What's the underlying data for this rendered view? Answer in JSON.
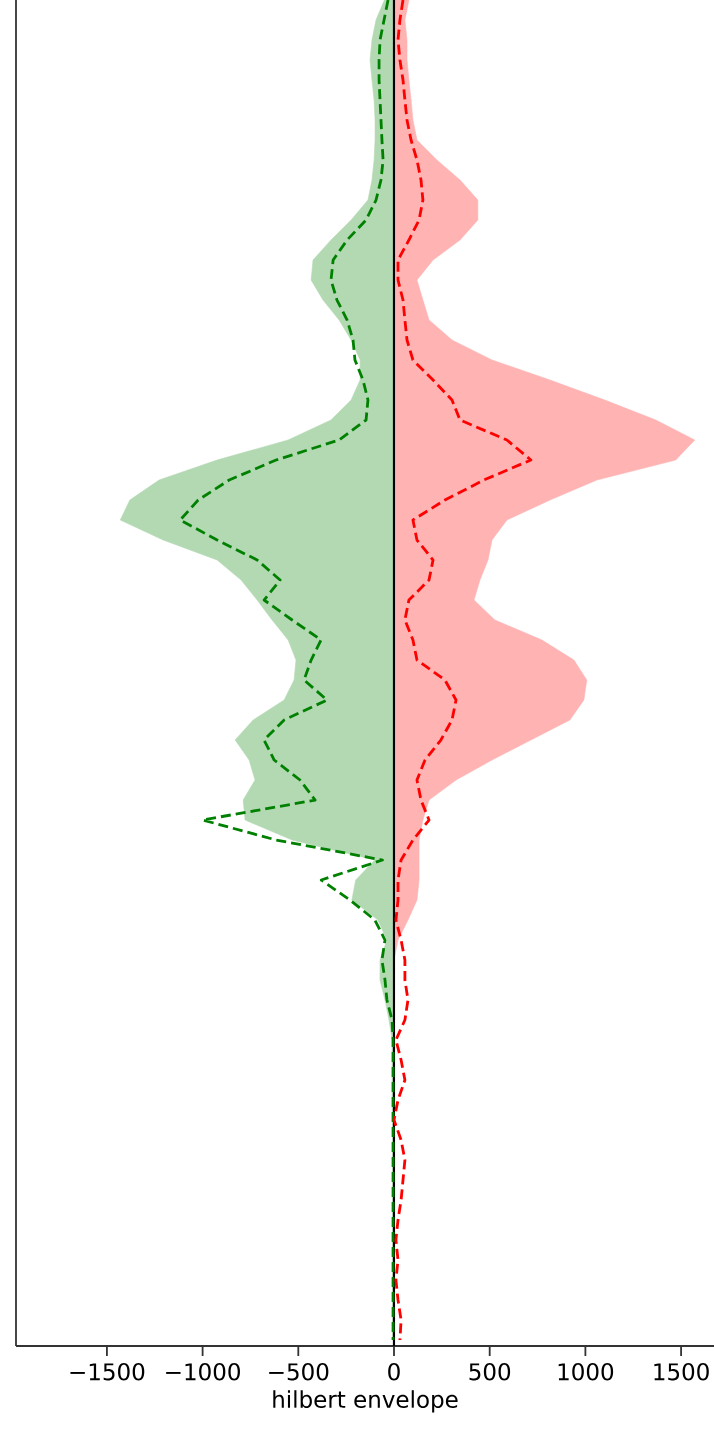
{
  "chart_data": {
    "type": "area",
    "orientation": "horizontal",
    "xlabel": "hilbert envelope",
    "categories": [
      null,
      null,
      null,
      null,
      null,
      null,
      null,
      null,
      null,
      null,
      null,
      null,
      null,
      null,
      null,
      null,
      null,
      null,
      null,
      null,
      null,
      null,
      null,
      null,
      null,
      null,
      null,
      null,
      null,
      null,
      null,
      null,
      null,
      null,
      null,
      null,
      null,
      null,
      null,
      null,
      null,
      null,
      null,
      null,
      null,
      null,
      null,
      null,
      null,
      null,
      null,
      null,
      null,
      null,
      null,
      null,
      null,
      null,
      null,
      null,
      null,
      null,
      null,
      null,
      null,
      null,
      null,
      null
    ],
    "xlim": [
      -1975,
      1672
    ],
    "xticks": [
      {
        "value": -1500,
        "label": "−1500"
      },
      {
        "value": -1000,
        "label": "−1000"
      },
      {
        "value": -500,
        "label": "−500"
      },
      0,
      500,
      1000,
      1500
    ],
    "tick_labels": "x",
    "ref_lines": [
      {
        "axis": "x",
        "value": 0,
        "color": "#000000"
      }
    ],
    "series": [
      {
        "color": "#b3d9b3",
        "values": [
          -50,
          -94,
          -115,
          -125,
          -115,
          -104,
          -99,
          -99,
          -104,
          -115,
          -136,
          -224,
          -329,
          -423,
          -433,
          -371,
          -287,
          -224,
          -177,
          -177,
          -224,
          -329,
          -553,
          -924,
          -1227,
          -1380,
          -1430,
          -1206,
          -924,
          -799,
          -715,
          -637,
          -553,
          -512,
          -522,
          -574,
          -736,
          -830,
          -757,
          -726,
          -788,
          -778,
          -532,
          -100,
          -200,
          -220,
          -84,
          -37,
          -73,
          -73,
          -47,
          -26,
          -10,
          -10,
          -10,
          -10,
          -8,
          -8,
          -8,
          -8,
          -8,
          -8,
          -8,
          -8,
          -8,
          -8,
          -8,
          -8
        ]
      },
      {
        "color": "#ffb3b3",
        "values": [
          78,
          57,
          68,
          68,
          78,
          89,
          99,
          120,
          224,
          345,
          438,
          438,
          345,
          204,
          120,
          151,
          183,
          303,
          512,
          815,
          1101,
          1368,
          1571,
          1472,
          1060,
          815,
          590,
          512,
          491,
          449,
          418,
          527,
          773,
          940,
          1007,
          992,
          919,
          715,
          512,
          324,
          183,
          151,
          131,
          131,
          131,
          120,
          73,
          21,
          0,
          0,
          0,
          0,
          0,
          0,
          0,
          0,
          0,
          0,
          0,
          0,
          0,
          0,
          0,
          0,
          0,
          0,
          0,
          0
        ]
      },
      {
        "type": "line",
        "line_style": "dashed",
        "color": "#008000",
        "values": [
          -31,
          -52,
          -73,
          -78,
          -78,
          -73,
          -68,
          -63,
          -57,
          -68,
          -94,
          -146,
          -245,
          -318,
          -329,
          -298,
          -245,
          -214,
          -204,
          -162,
          -136,
          -146,
          -287,
          -616,
          -861,
          -1023,
          -1117,
          -924,
          -715,
          -595,
          -679,
          -532,
          -381,
          -433,
          -470,
          -350,
          -574,
          -679,
          -626,
          -491,
          -412,
          -1000,
          -616,
          -60,
          -380,
          -230,
          -100,
          -47,
          -63,
          -47,
          -37,
          -10,
          -5,
          -5,
          -5,
          -5,
          -5,
          -5,
          -5,
          -5,
          -5,
          -5,
          -5,
          -5,
          -5,
          -5,
          -5,
          -5
        ]
      },
      {
        "type": "line",
        "line_style": "dashed",
        "color": "#ff0000",
        "values": [
          47,
          31,
          21,
          31,
          47,
          57,
          68,
          89,
          120,
          141,
          151,
          131,
          78,
          21,
          21,
          47,
          57,
          68,
          99,
          204,
          303,
          345,
          590,
          715,
          470,
          266,
          99,
          120,
          204,
          183,
          78,
          57,
          99,
          120,
          266,
          324,
          303,
          245,
          162,
          120,
          141,
          183,
          99,
          37,
          21,
          21,
          10,
          37,
          57,
          57,
          73,
          57,
          10,
          37,
          57,
          21,
          0,
          37,
          57,
          47,
          37,
          21,
          10,
          21,
          10,
          21,
          37,
          31
        ]
      }
    ]
  }
}
